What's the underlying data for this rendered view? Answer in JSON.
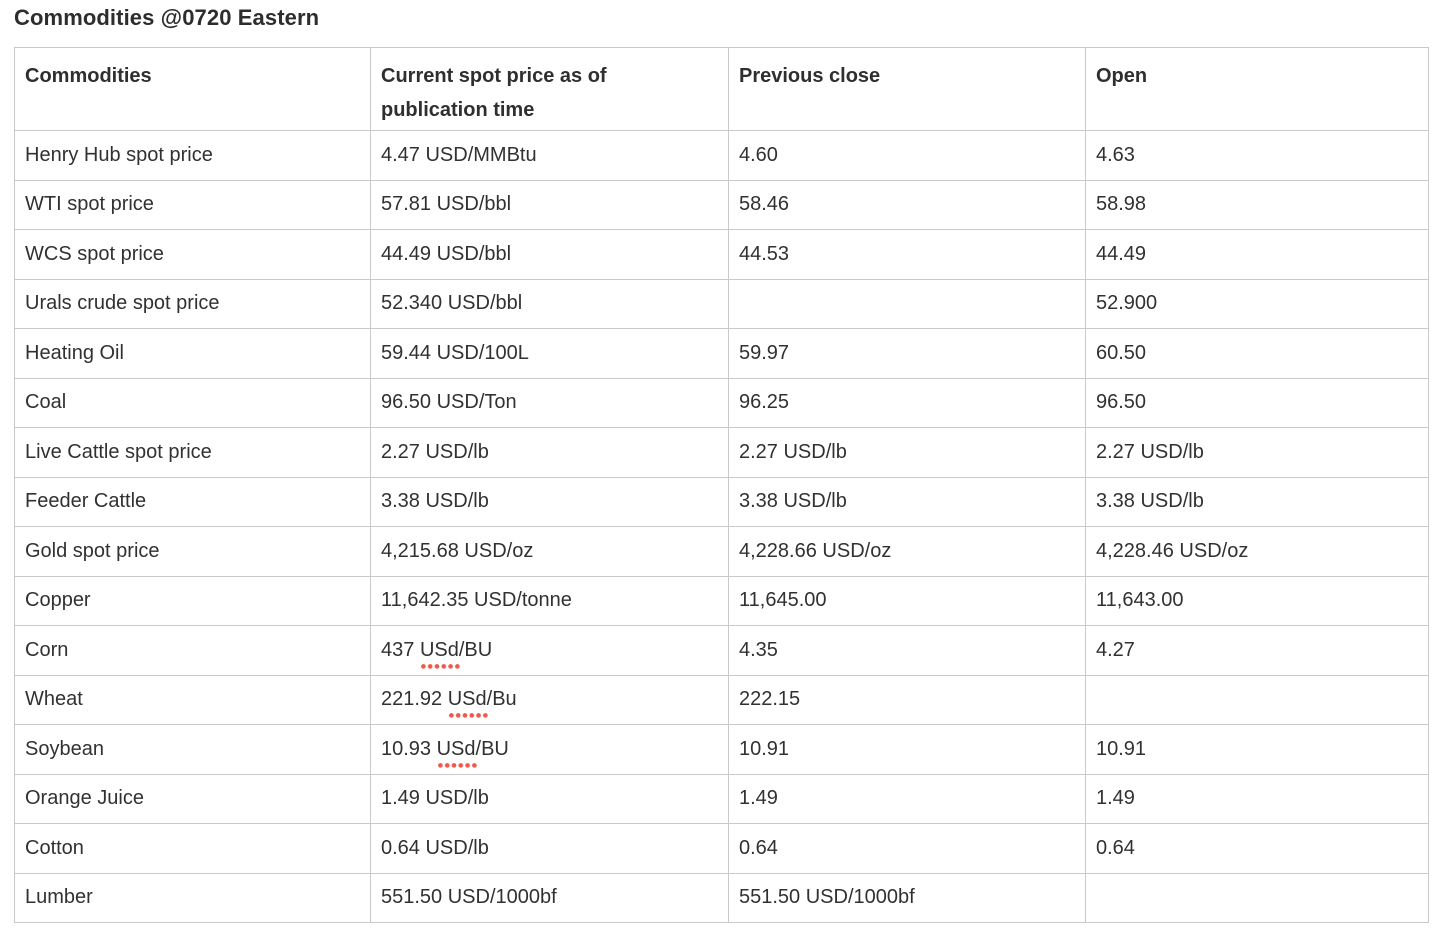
{
  "title": "Commodities @0720 Eastern",
  "colors": {
    "spellcheck_underline": "#f0594c",
    "table_border": "#c9c9c9",
    "text": "#303030"
  },
  "table": {
    "columns": [
      "Commodities",
      "Current spot price as of publication time",
      "Previous close",
      "Open"
    ],
    "rows": [
      [
        "Henry Hub spot price",
        "4.47 USD/MMBtu",
        "4.60",
        "4.63"
      ],
      [
        "WTI spot price",
        "57.81 USD/bbl",
        "58.46",
        "58.98"
      ],
      [
        "WCS spot price",
        "44.49 USD/bbl",
        "44.53",
        "44.49"
      ],
      [
        "Urals crude spot price",
        "52.340 USD/bbl",
        "",
        "52.900"
      ],
      [
        "Heating Oil",
        "59.44 USD/100L",
        "59.97",
        "60.50"
      ],
      [
        "Coal",
        "96.50 USD/Ton",
        "96.25",
        "96.50"
      ],
      [
        "Live Cattle spot price",
        "2.27 USD/lb",
        "2.27 USD/lb",
        "2.27 USD/lb"
      ],
      [
        "Feeder Cattle",
        "3.38 USD/lb",
        "3.38 USD/lb",
        "3.38 USD/lb"
      ],
      [
        "Gold spot price",
        "4,215.68 USD/oz",
        "4,228.66 USD/oz",
        "4,228.46 USD/oz"
      ],
      [
        "Copper",
        "11,642.35 USD/tonne",
        "11,645.00",
        "11,643.00"
      ],
      [
        "Corn",
        {
          "text": "437 USd/BU",
          "misspelled": "USd"
        },
        "4.35",
        "4.27"
      ],
      [
        "Wheat",
        {
          "text": "221.92 USd/Bu",
          "misspelled": "USd"
        },
        "222.15",
        ""
      ],
      [
        "Soybean",
        {
          "text": "10.93 USd/BU",
          "misspelled": "USd"
        },
        "10.91",
        "10.91"
      ],
      [
        "Orange Juice",
        "1.49 USD/lb",
        "1.49",
        "1.49"
      ],
      [
        "Cotton",
        "0.64 USD/lb",
        "0.64",
        "0.64"
      ],
      [
        "Lumber",
        "551.50 USD/1000bf",
        "551.50 USD/1000bf",
        ""
      ]
    ]
  }
}
